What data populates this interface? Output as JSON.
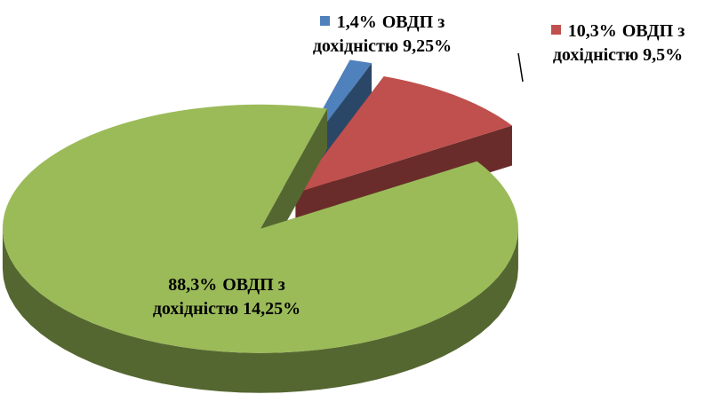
{
  "chart_data": {
    "type": "pie",
    "categories": [
      "ОВДП з дохідністю 9,25%",
      "ОВДП з дохідністю 9,5%",
      "ОВДП з дохідністю 14,25%"
    ],
    "values": [
      1.4,
      10.3,
      88.3
    ],
    "value_labels": [
      "1,4%",
      "10,3%",
      "88,3%"
    ],
    "colors": [
      "#4f81bd",
      "#c0504d",
      "#9bbb59"
    ]
  }
}
